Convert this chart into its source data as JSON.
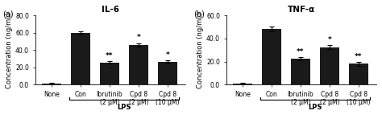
{
  "panel_a": {
    "title": "IL-6",
    "ylabel": "Concentration (ng/mL)",
    "categories": [
      "None",
      "Con",
      "Ibrutinib\n(2 μM)",
      "Cpd 8\n(2 μM)",
      "Cpd 8\n(10 μM)"
    ],
    "values": [
      1.5,
      60.0,
      25.5,
      46.0,
      26.5
    ],
    "errors": [
      0.5,
      1.5,
      1.5,
      2.0,
      1.5
    ],
    "ylim": [
      0,
      80.0
    ],
    "yticks": [
      0.0,
      20.0,
      40.0,
      60.0,
      80.0
    ],
    "bar_color": "#1a1a1a",
    "lps_bars": [
      1,
      2,
      3,
      4
    ],
    "annotations": [
      "",
      "",
      "**",
      "*",
      "*"
    ],
    "panel_label": "(a)"
  },
  "panel_b": {
    "title": "TNF-α",
    "ylabel": "Concentration (ng/mL)",
    "categories": [
      "None",
      "Con",
      "Ibrutinib\n(2 μM)",
      "Cpd 8\n(2 μM)",
      "Cpd 8\n(10 μM)"
    ],
    "values": [
      1.2,
      48.0,
      22.5,
      32.5,
      18.0
    ],
    "errors": [
      0.4,
      2.0,
      1.5,
      2.0,
      1.5
    ],
    "ylim": [
      0,
      60.0
    ],
    "yticks": [
      0.0,
      20.0,
      40.0,
      60.0
    ],
    "bar_color": "#1a1a1a",
    "lps_bars": [
      1,
      2,
      3,
      4
    ],
    "annotations": [
      "",
      "",
      "**",
      "*",
      "**"
    ],
    "panel_label": "(b)"
  },
  "figure_bg": "#ffffff",
  "tick_fontsize": 5.5,
  "label_fontsize": 6.0,
  "title_fontsize": 7.5,
  "annot_fontsize": 6.5,
  "panel_label_fontsize": 7.0
}
